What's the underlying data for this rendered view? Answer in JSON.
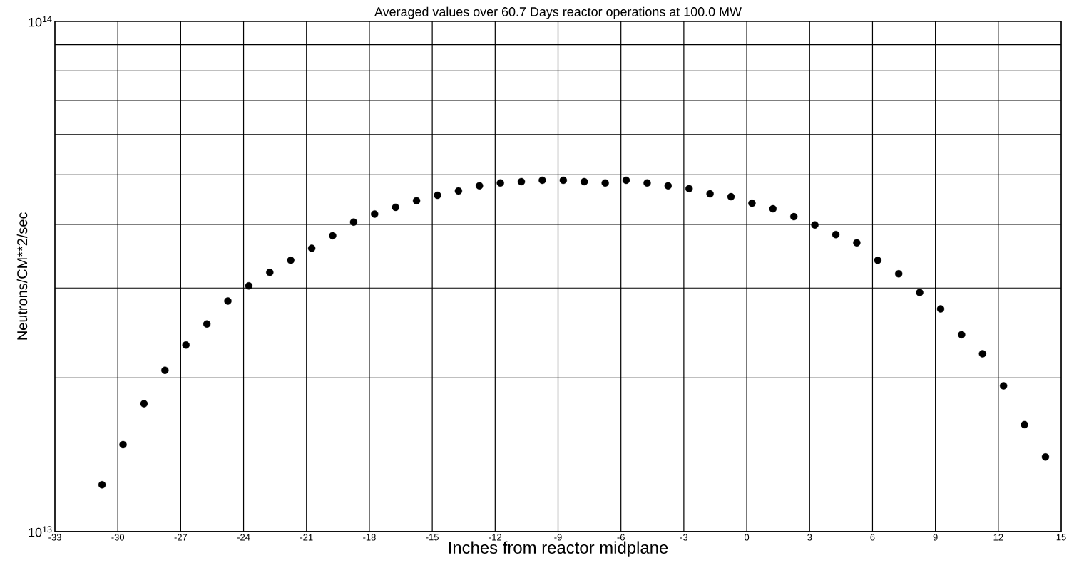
{
  "chart_data": {
    "type": "scatter",
    "title": "Averaged values over 60.7 Days reactor operations at 100.0 MW",
    "xlabel": "Inches from reactor midplane",
    "ylabel": "Neutrons/CM**2/sec",
    "x": [
      -30.75,
      -29.75,
      -28.75,
      -27.75,
      -26.75,
      -25.75,
      -24.75,
      -23.75,
      -22.75,
      -21.75,
      -20.75,
      -19.75,
      -18.75,
      -17.75,
      -16.75,
      -15.75,
      -14.75,
      -13.75,
      -12.75,
      -11.75,
      -10.75,
      -9.75,
      -8.75,
      -7.75,
      -6.75,
      -5.75,
      -4.75,
      -3.75,
      -2.75,
      -1.75,
      -0.75,
      0.25,
      1.25,
      2.25,
      3.25,
      4.25,
      5.25,
      6.25,
      7.25,
      8.25,
      9.25,
      10.25,
      11.25,
      12.25,
      13.25,
      14.25
    ],
    "values": [
      12350000000000.0,
      14800000000000.0,
      17800000000000.0,
      20700000000000.0,
      23200000000000.0,
      25500000000000.0,
      28300000000000.0,
      30300000000000.0,
      32200000000000.0,
      34000000000000.0,
      35900000000000.0,
      38000000000000.0,
      40400000000000.0,
      41900000000000.0,
      43200000000000.0,
      44500000000000.0,
      45600000000000.0,
      46500000000000.0,
      47600000000000.0,
      48200000000000.0,
      48500000000000.0,
      48800000000000.0,
      48800000000000.0,
      48500000000000.0,
      48200000000000.0,
      48800000000000.0,
      48200000000000.0,
      47600000000000.0,
      47000000000000.0,
      45900000000000.0,
      45300000000000.0,
      44000000000000.0,
      42900000000000.0,
      41400000000000.0,
      39900000000000.0,
      38200000000000.0,
      36800000000000.0,
      34000000000000.0,
      32000000000000.0,
      29400000000000.0,
      27300000000000.0,
      24300000000000.0,
      22300000000000.0,
      19300000000000.0,
      16200000000000.0,
      14000000000000.0
    ],
    "color": "#000000",
    "log": "y",
    "grid": true,
    "xlim": [
      -33,
      15
    ],
    "xticks": [
      -33,
      -30,
      -27,
      -24,
      -21,
      -18,
      -15,
      -12,
      -9,
      -6,
      -3,
      0,
      3,
      6,
      9,
      12,
      15
    ],
    "ylim": [
      10000000000000.0,
      100000000000000.0
    ],
    "yticks": [
      {
        "value": 10000000000000.0,
        "label": "10$^{13}$"
      },
      {
        "value": 20000000000000.0,
        "label": null
      },
      {
        "value": 30000000000000.0,
        "label": null
      },
      {
        "value": 40000000000000.0,
        "label": null
      },
      {
        "value": 50000000000000.0,
        "label": null
      },
      {
        "value": 60000000000000.0,
        "label": null
      },
      {
        "value": 70000000000000.0,
        "label": null
      },
      {
        "value": 80000000000000.0,
        "label": null
      },
      {
        "value": 90000000000000.0,
        "label": null
      },
      {
        "value": 100000000000000.0,
        "label": "10$^{14}$"
      }
    ]
  }
}
